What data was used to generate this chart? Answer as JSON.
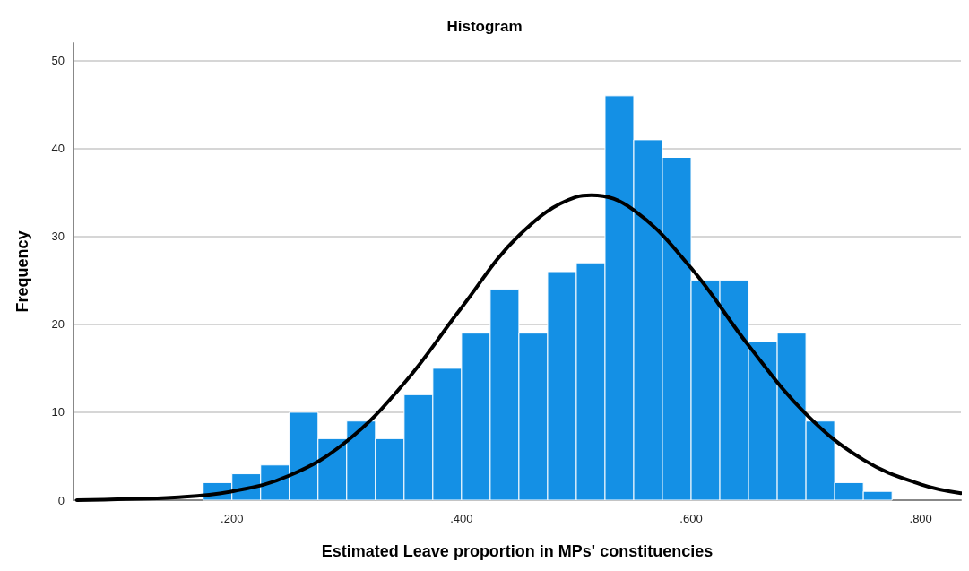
{
  "chart_data": {
    "type": "histogram",
    "title": "Histogram",
    "xlabel": "Estimated Leave proportion in MPs' constituencies",
    "ylabel": "Frequency",
    "bins": [
      0.175,
      0.2,
      0.225,
      0.25,
      0.275,
      0.3,
      0.325,
      0.35,
      0.375,
      0.4,
      0.425,
      0.45,
      0.475,
      0.5,
      0.525,
      0.55,
      0.575,
      0.6,
      0.625,
      0.65,
      0.675,
      0.7,
      0.725,
      0.75,
      0.775
    ],
    "values": [
      2,
      3,
      4,
      10,
      7,
      9,
      7,
      12,
      15,
      19,
      24,
      19,
      26,
      27,
      46,
      41,
      39,
      25,
      25,
      18,
      19,
      9,
      2,
      1
    ],
    "color": "#1490e5",
    "series": [
      {
        "type": "line",
        "color": "#000000",
        "x": [
          0.065,
          0.1,
          0.15,
          0.2,
          0.25,
          0.3,
          0.35,
          0.4,
          0.45,
          0.5,
          0.513,
          0.55,
          0.6,
          0.65,
          0.7,
          0.75,
          0.8,
          0.835
        ],
        "values": [
          0,
          0.1,
          0.3,
          1.0,
          2.8,
          6.7,
          13.3,
          21.9,
          30.1,
          34.5,
          34.7,
          33.0,
          26.4,
          17.6,
          9.8,
          4.6,
          1.8,
          0.8
        ]
      }
    ],
    "xlim": [
      0.062,
      0.835
    ],
    "xticks": [
      {
        "value": 0.2,
        "label": ".200"
      },
      {
        "value": 0.4,
        "label": ".400"
      },
      {
        "value": 0.6,
        "label": ".600"
      },
      {
        "value": 0.8,
        "label": ".800"
      }
    ],
    "ylim": [
      0,
      52
    ],
    "yticks": [
      0,
      10,
      20,
      30,
      40,
      50
    ],
    "grid": "y",
    "marker": "none",
    "line_style": "solid"
  }
}
